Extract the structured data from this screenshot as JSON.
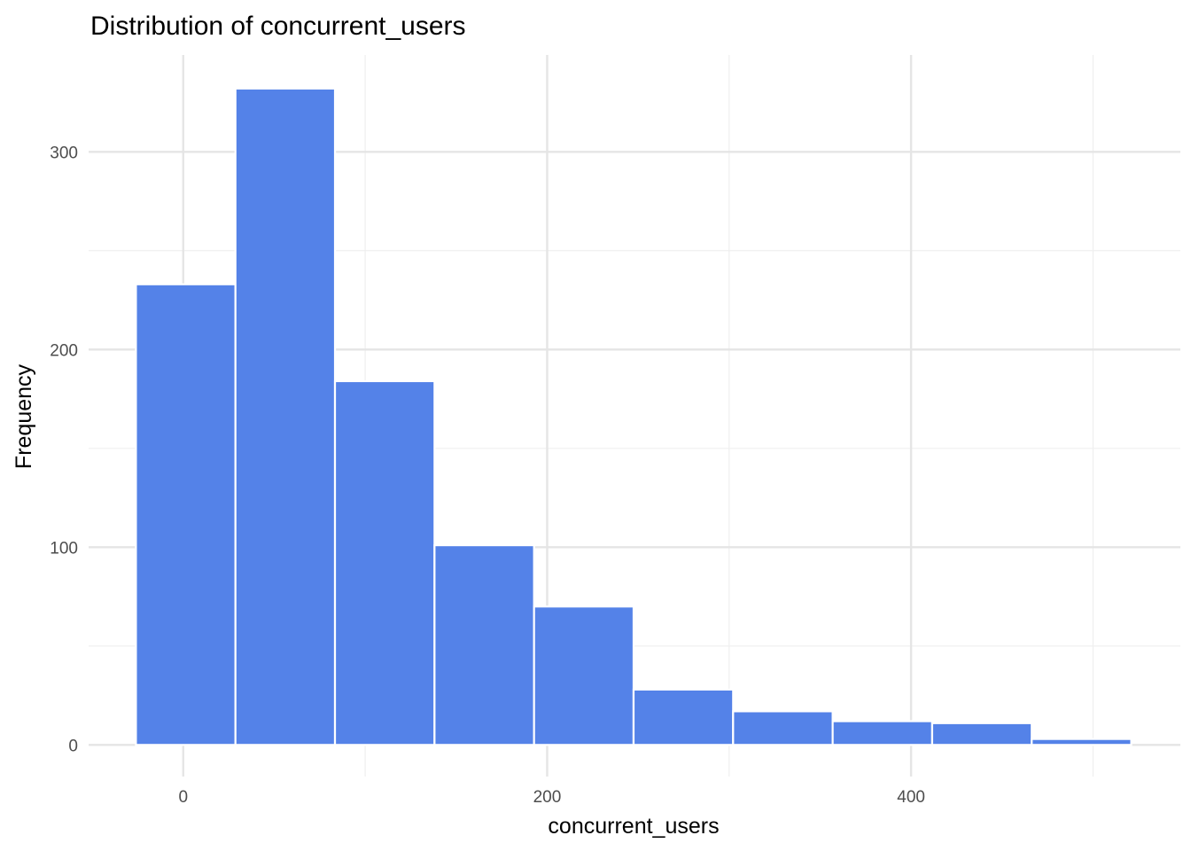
{
  "chart_data": {
    "type": "bar",
    "subtype": "histogram",
    "title": "Distribution of concurrent_users",
    "xlabel": "concurrent_users",
    "ylabel": "Frequency",
    "bin_edges": [
      -26,
      28.7,
      83.4,
      138.1,
      192.8,
      247.5,
      302.2,
      356.9,
      411.6,
      466.3,
      521
    ],
    "values": [
      233,
      332,
      184,
      101,
      70,
      28,
      17,
      12,
      11,
      3
    ],
    "xlim": [
      -52,
      548
    ],
    "ylim": [
      -16,
      349
    ],
    "xticks": [
      0,
      200,
      400
    ],
    "xtick_labels": [
      "0",
      "200",
      "400"
    ],
    "xminor": [
      100,
      300,
      500
    ],
    "yticks": [
      0,
      100,
      200,
      300
    ],
    "ytick_labels": [
      "0",
      "100",
      "200",
      "300"
    ],
    "yminor": [
      50,
      150,
      250
    ],
    "grid": true,
    "bar_color": "#5482E8",
    "bar_edge_color": "#ffffff"
  }
}
